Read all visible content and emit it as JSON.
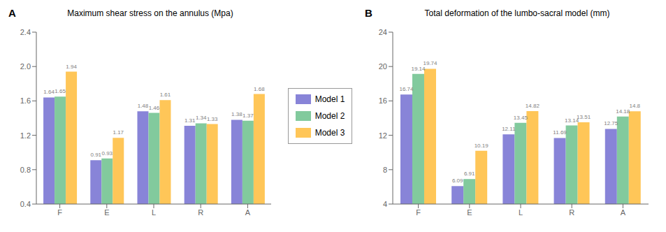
{
  "chart_data": [
    {
      "type": "bar",
      "title": "Maximum shear stress on the annulus (Mpa)",
      "annotations": [
        {
          "text": "A"
        }
      ],
      "categories": [
        "F",
        "E",
        "L",
        "R",
        "A"
      ],
      "series": [
        {
          "name": "Model 1",
          "color": "#8884d8",
          "values": [
            1.64,
            0.91,
            1.48,
            1.31,
            1.38
          ]
        },
        {
          "name": "Model 2",
          "color": "#82ca9d",
          "values": [
            1.65,
            0.93,
            1.46,
            1.34,
            1.37
          ]
        },
        {
          "name": "Model 3",
          "color": "#ffc658",
          "values": [
            1.94,
            1.17,
            1.61,
            1.33,
            1.68
          ]
        }
      ],
      "ylim": [
        0.4,
        2.4
      ],
      "yticks": [
        0.4,
        0.8,
        1.2,
        1.6,
        {
          "value": 2.0,
          "label": "2.0"
        },
        2.4
      ],
      "data_labels": true,
      "legend": "right"
    },
    {
      "type": "bar",
      "title": "Total deformation of the lumbo-sacral model (mm)",
      "annotations": [
        {
          "text": "B"
        }
      ],
      "categories": [
        "F",
        "E",
        "L",
        "R",
        "A"
      ],
      "series": [
        {
          "name": "Model 1",
          "color": "#8884d8",
          "values": [
            16.74,
            6.09,
            12.11,
            11.69,
            12.75
          ]
        },
        {
          "name": "Model 2",
          "color": "#82ca9d",
          "values": [
            19.14,
            6.91,
            13.45,
            13.14,
            14.18
          ]
        },
        {
          "name": "Model 3",
          "color": "#ffc658",
          "values": [
            19.74,
            10.19,
            14.82,
            13.51,
            14.8
          ]
        }
      ],
      "ylim": [
        4,
        24
      ],
      "yticks": [
        4,
        8,
        12,
        16,
        20,
        24
      ],
      "data_labels": true
    }
  ]
}
